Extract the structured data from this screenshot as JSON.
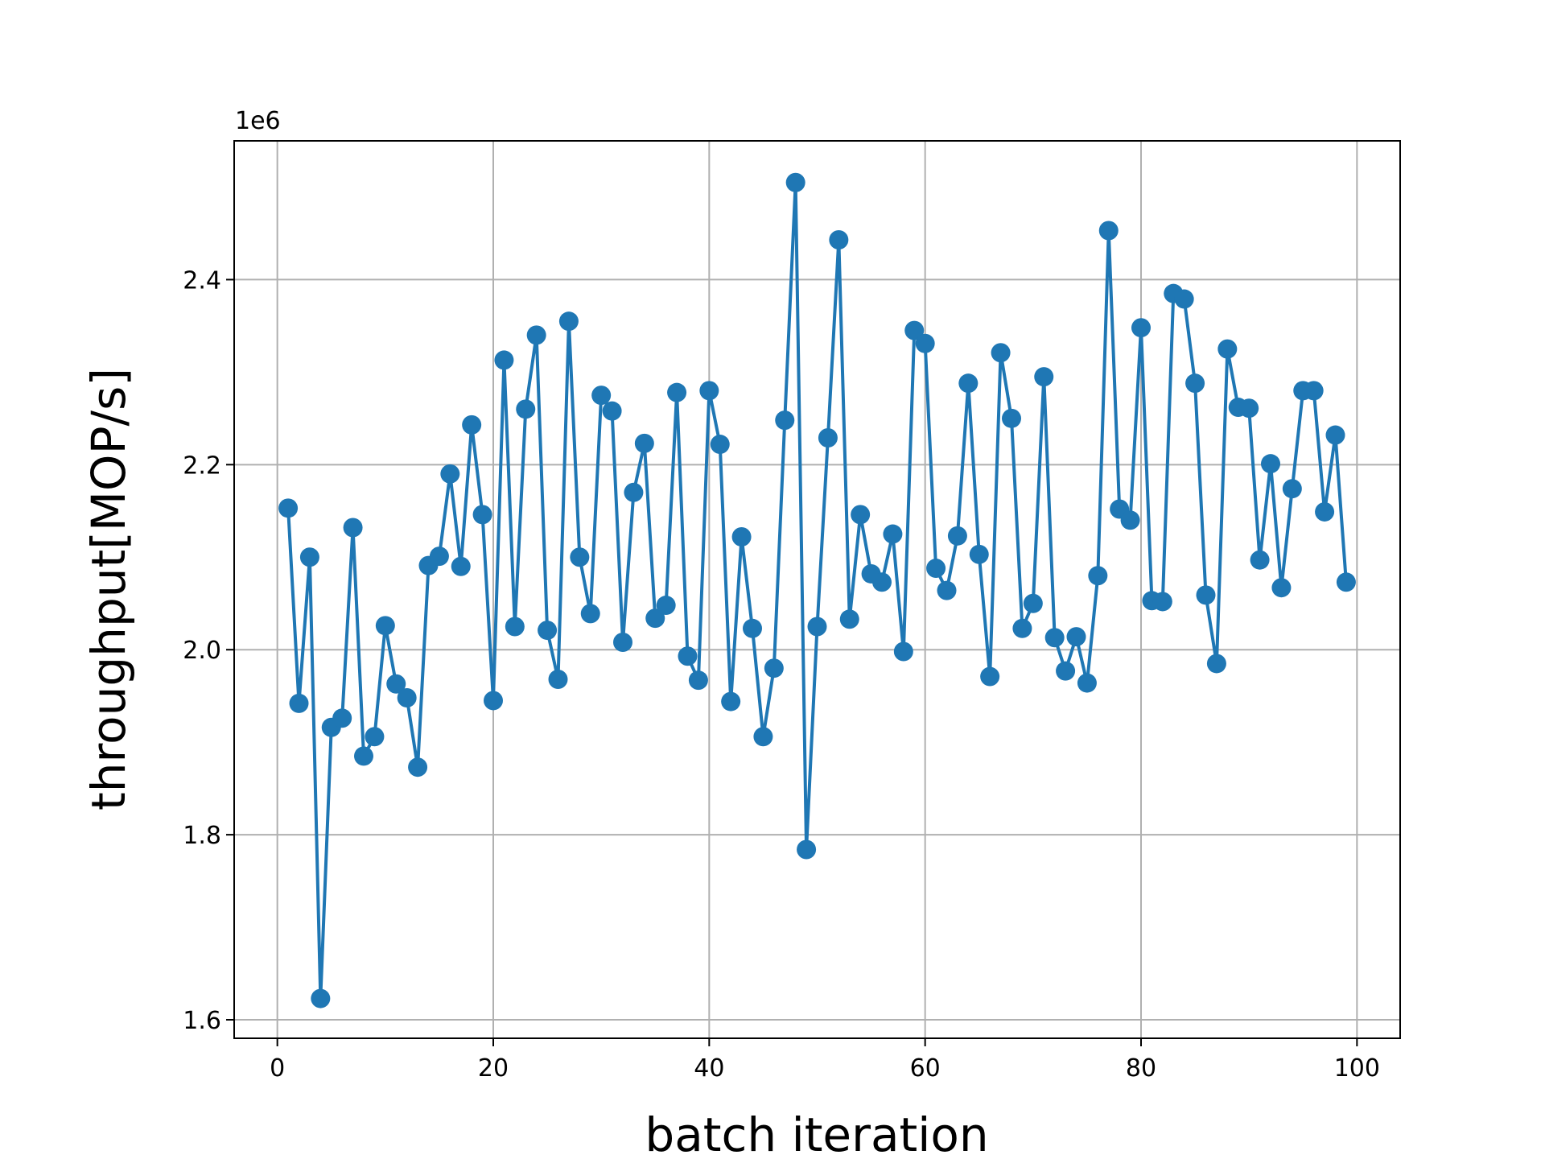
{
  "chart_data": {
    "type": "line",
    "title": "",
    "xlabel": "batch iteration",
    "ylabel": "throughput[MOP/s]",
    "y_offset_label": "1e6",
    "y_scale": 1000000,
    "xlim": [
      -4,
      104
    ],
    "ylim": [
      1.58,
      2.55
    ],
    "xticks": [
      0,
      20,
      40,
      60,
      80,
      100
    ],
    "xtick_labels": [
      "0",
      "20",
      "40",
      "60",
      "80",
      "100"
    ],
    "yticks": [
      1.6,
      1.8,
      2.0,
      2.2,
      2.4
    ],
    "ytick_labels": [
      "1.6",
      "1.8",
      "2.0",
      "2.2",
      "2.4"
    ],
    "grid": true,
    "series": [
      {
        "name": "throughput",
        "color": "#1f77b4",
        "marker": "circle",
        "x": [
          1,
          2,
          3,
          4,
          5,
          6,
          7,
          8,
          9,
          10,
          11,
          12,
          13,
          14,
          15,
          16,
          17,
          18,
          19,
          20,
          21,
          22,
          23,
          24,
          25,
          26,
          27,
          28,
          29,
          30,
          31,
          32,
          33,
          34,
          35,
          36,
          37,
          38,
          39,
          40,
          41,
          42,
          43,
          44,
          45,
          46,
          47,
          48,
          49,
          50,
          51,
          52,
          53,
          54,
          55,
          56,
          57,
          58,
          59,
          60,
          61,
          62,
          63,
          64,
          65,
          66,
          67,
          68,
          69,
          70,
          71,
          72,
          73,
          74,
          75,
          76,
          77,
          78,
          79,
          80,
          81,
          82,
          83,
          84,
          85,
          86,
          87,
          88,
          89,
          90,
          91,
          92,
          93,
          94,
          95,
          96,
          97,
          98,
          99
        ],
        "y": [
          2.153,
          1.942,
          2.1,
          1.623,
          1.916,
          1.926,
          2.132,
          1.885,
          1.906,
          2.026,
          1.963,
          1.948,
          1.873,
          2.091,
          2.101,
          2.19,
          2.09,
          2.243,
          2.146,
          1.945,
          2.313,
          2.025,
          2.26,
          2.34,
          2.021,
          1.968,
          2.355,
          2.1,
          2.039,
          2.275,
          2.258,
          2.008,
          2.17,
          2.223,
          2.034,
          2.048,
          2.278,
          1.993,
          1.967,
          2.28,
          2.222,
          1.944,
          2.122,
          2.023,
          1.906,
          1.98,
          2.248,
          2.505,
          1.784,
          2.025,
          2.229,
          2.443,
          2.033,
          2.146,
          2.082,
          2.073,
          2.125,
          1.998,
          2.345,
          2.331,
          2.088,
          2.064,
          2.123,
          2.288,
          2.103,
          1.971,
          2.321,
          2.25,
          2.023,
          2.05,
          2.295,
          2.013,
          1.977,
          2.014,
          1.964,
          2.08,
          2.453,
          2.152,
          2.14,
          2.348,
          2.053,
          2.052,
          2.385,
          2.379,
          2.288,
          2.059,
          1.985,
          2.325,
          2.262,
          2.261,
          2.097,
          2.201,
          2.067,
          2.174,
          2.28,
          2.28,
          2.149,
          2.232,
          2.073
        ]
      }
    ]
  }
}
